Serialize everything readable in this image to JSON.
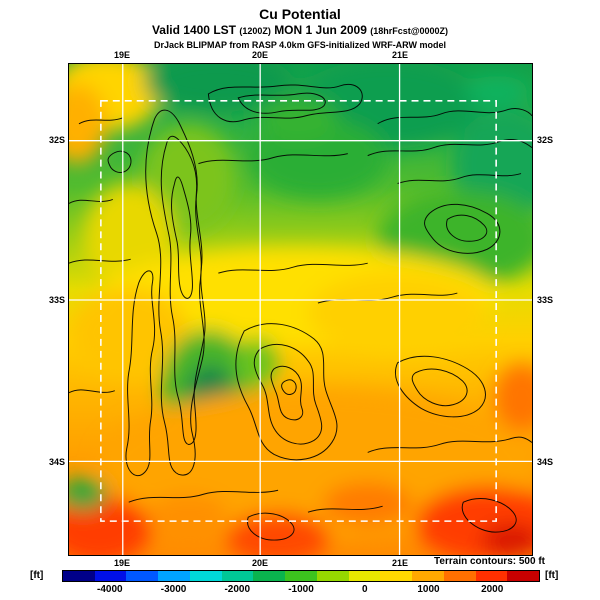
{
  "header": {
    "title": "Cu Potential",
    "valid": {
      "part1": "Valid 1400 LST",
      "part2": "(1200Z)",
      "part3": "MON 1 Jun 2009",
      "part4": "(18hrFcst@0000Z)"
    },
    "model_line": "DrJack BLIPMAP from RASP 4.0km GFS-initialized WRF-ARW model"
  },
  "map": {
    "lat_labels": [
      "32S",
      "33S",
      "34S"
    ],
    "lon_labels": [
      "19E",
      "20E",
      "21E"
    ],
    "terrain_note": "Terrain contours: 500 ft"
  },
  "colorbar": {
    "unit": "[ft]",
    "min": -4750,
    "max": 2750,
    "ticks": [
      -4000,
      -3000,
      -2000,
      -1000,
      0,
      1000,
      2000
    ],
    "colors": [
      "#000089",
      "#0010E8",
      "#0058FF",
      "#00A4FF",
      "#00D8D8",
      "#00C896",
      "#0AB44E",
      "#3CC41E",
      "#96D800",
      "#E8E800",
      "#FFD800",
      "#FFA800",
      "#FF7000",
      "#FF3000",
      "#C80000"
    ]
  },
  "chart_data": {
    "type": "heatmap",
    "title": "Cu Potential",
    "units": "ft",
    "colorbar_min": -4750,
    "colorbar_max": 2750,
    "colorbar_step": 500,
    "colorbar_ticks": [
      -4000,
      -3000,
      -2000,
      -1000,
      0,
      1000,
      2000
    ],
    "x_ticks": [
      "19E",
      "20E",
      "21E"
    ],
    "y_ticks": [
      "32S",
      "33S",
      "34S"
    ],
    "annotations": [
      "Terrain contours: 500 ft"
    ],
    "field_summary": "Green (-1000 to -2000 ft) across the northern third of the domain; yellow to orange (0 to +1000 ft) through the center; red (+1500 to +2500 ft) patches along the southern edge, southwest corner and southeast corner; black terrain contour clusters over the western and central mountain ranges; white solid lat/lon grid lines and white dashed model-domain box."
  }
}
